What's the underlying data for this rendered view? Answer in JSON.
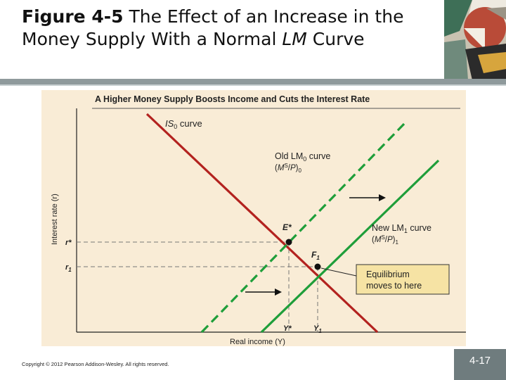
{
  "slide": {
    "title_bold": "Figure 4-5",
    "title_rest": "  The Effect of an Increase in the Money Supply With a Normal ",
    "title_italic": "LM",
    "title_end": " Curve",
    "copyright": "Copyright © 2012 Pearson Addison-Wesley. All rights reserved.",
    "page_number": "4-17"
  },
  "diagram": {
    "heading": "A Higher Money Supply Boosts Income and Cuts the Interest Rate",
    "y_axis_label": "Interest rate (r)",
    "x_axis_label": "Real income (Y)",
    "is_curve_label": "IS",
    "is_curve_sub": "0",
    "is_curve_suffix": " curve",
    "old_lm_label": "Old LM",
    "old_lm_sub": "0",
    "old_lm_suffix": " curve",
    "old_lm_ratio": "(MS/P)0",
    "new_lm_label": "New LM",
    "new_lm_sub": "1",
    "new_lm_suffix": " curve",
    "new_lm_ratio": "(MS/P)1",
    "point_e": "E*",
    "point_f": "F1",
    "r_star": "r*",
    "r_one": "r1",
    "y_star": "Y*",
    "y_one": "Y1",
    "callout": [
      "Equilibrium",
      "moves to here"
    ],
    "colors": {
      "is": "#b3221f",
      "lm": "#1f9e3a",
      "callout_bg": "#f6e3a4",
      "background": "#f9ecd6"
    }
  }
}
